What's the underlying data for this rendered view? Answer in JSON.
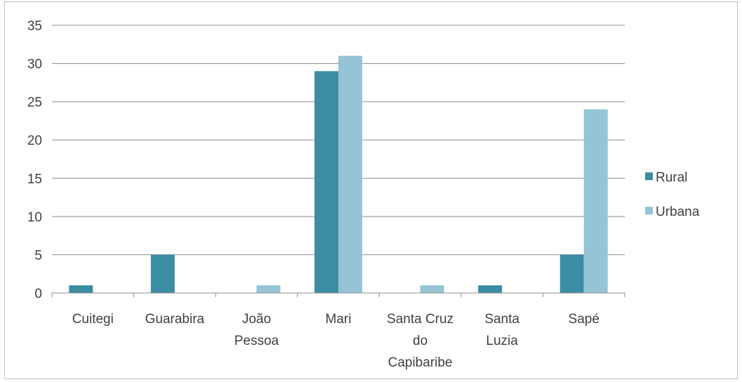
{
  "chart_data": {
    "type": "bar",
    "categories": [
      [
        "Cuitegi"
      ],
      [
        "Guarabira"
      ],
      [
        "João",
        "Pessoa"
      ],
      [
        "Mari"
      ],
      [
        "Santa Cruz",
        "do",
        "Capibaribe"
      ],
      [
        "Santa",
        "Luzia"
      ],
      [
        "Sapé"
      ]
    ],
    "series": [
      {
        "name": "Rural",
        "color": "#3c8ca4",
        "values": [
          1,
          5,
          0,
          29,
          0,
          1,
          5
        ]
      },
      {
        "name": "Urbana",
        "color": "#95c4d6",
        "values": [
          0,
          0,
          1,
          31,
          1,
          0,
          24
        ]
      }
    ],
    "ylim": [
      0,
      35
    ],
    "yticks": [
      0,
      5,
      10,
      15,
      20,
      25,
      30,
      35
    ],
    "grid": true,
    "legend": "right",
    "title": "",
    "xlabel": "",
    "ylabel": ""
  }
}
